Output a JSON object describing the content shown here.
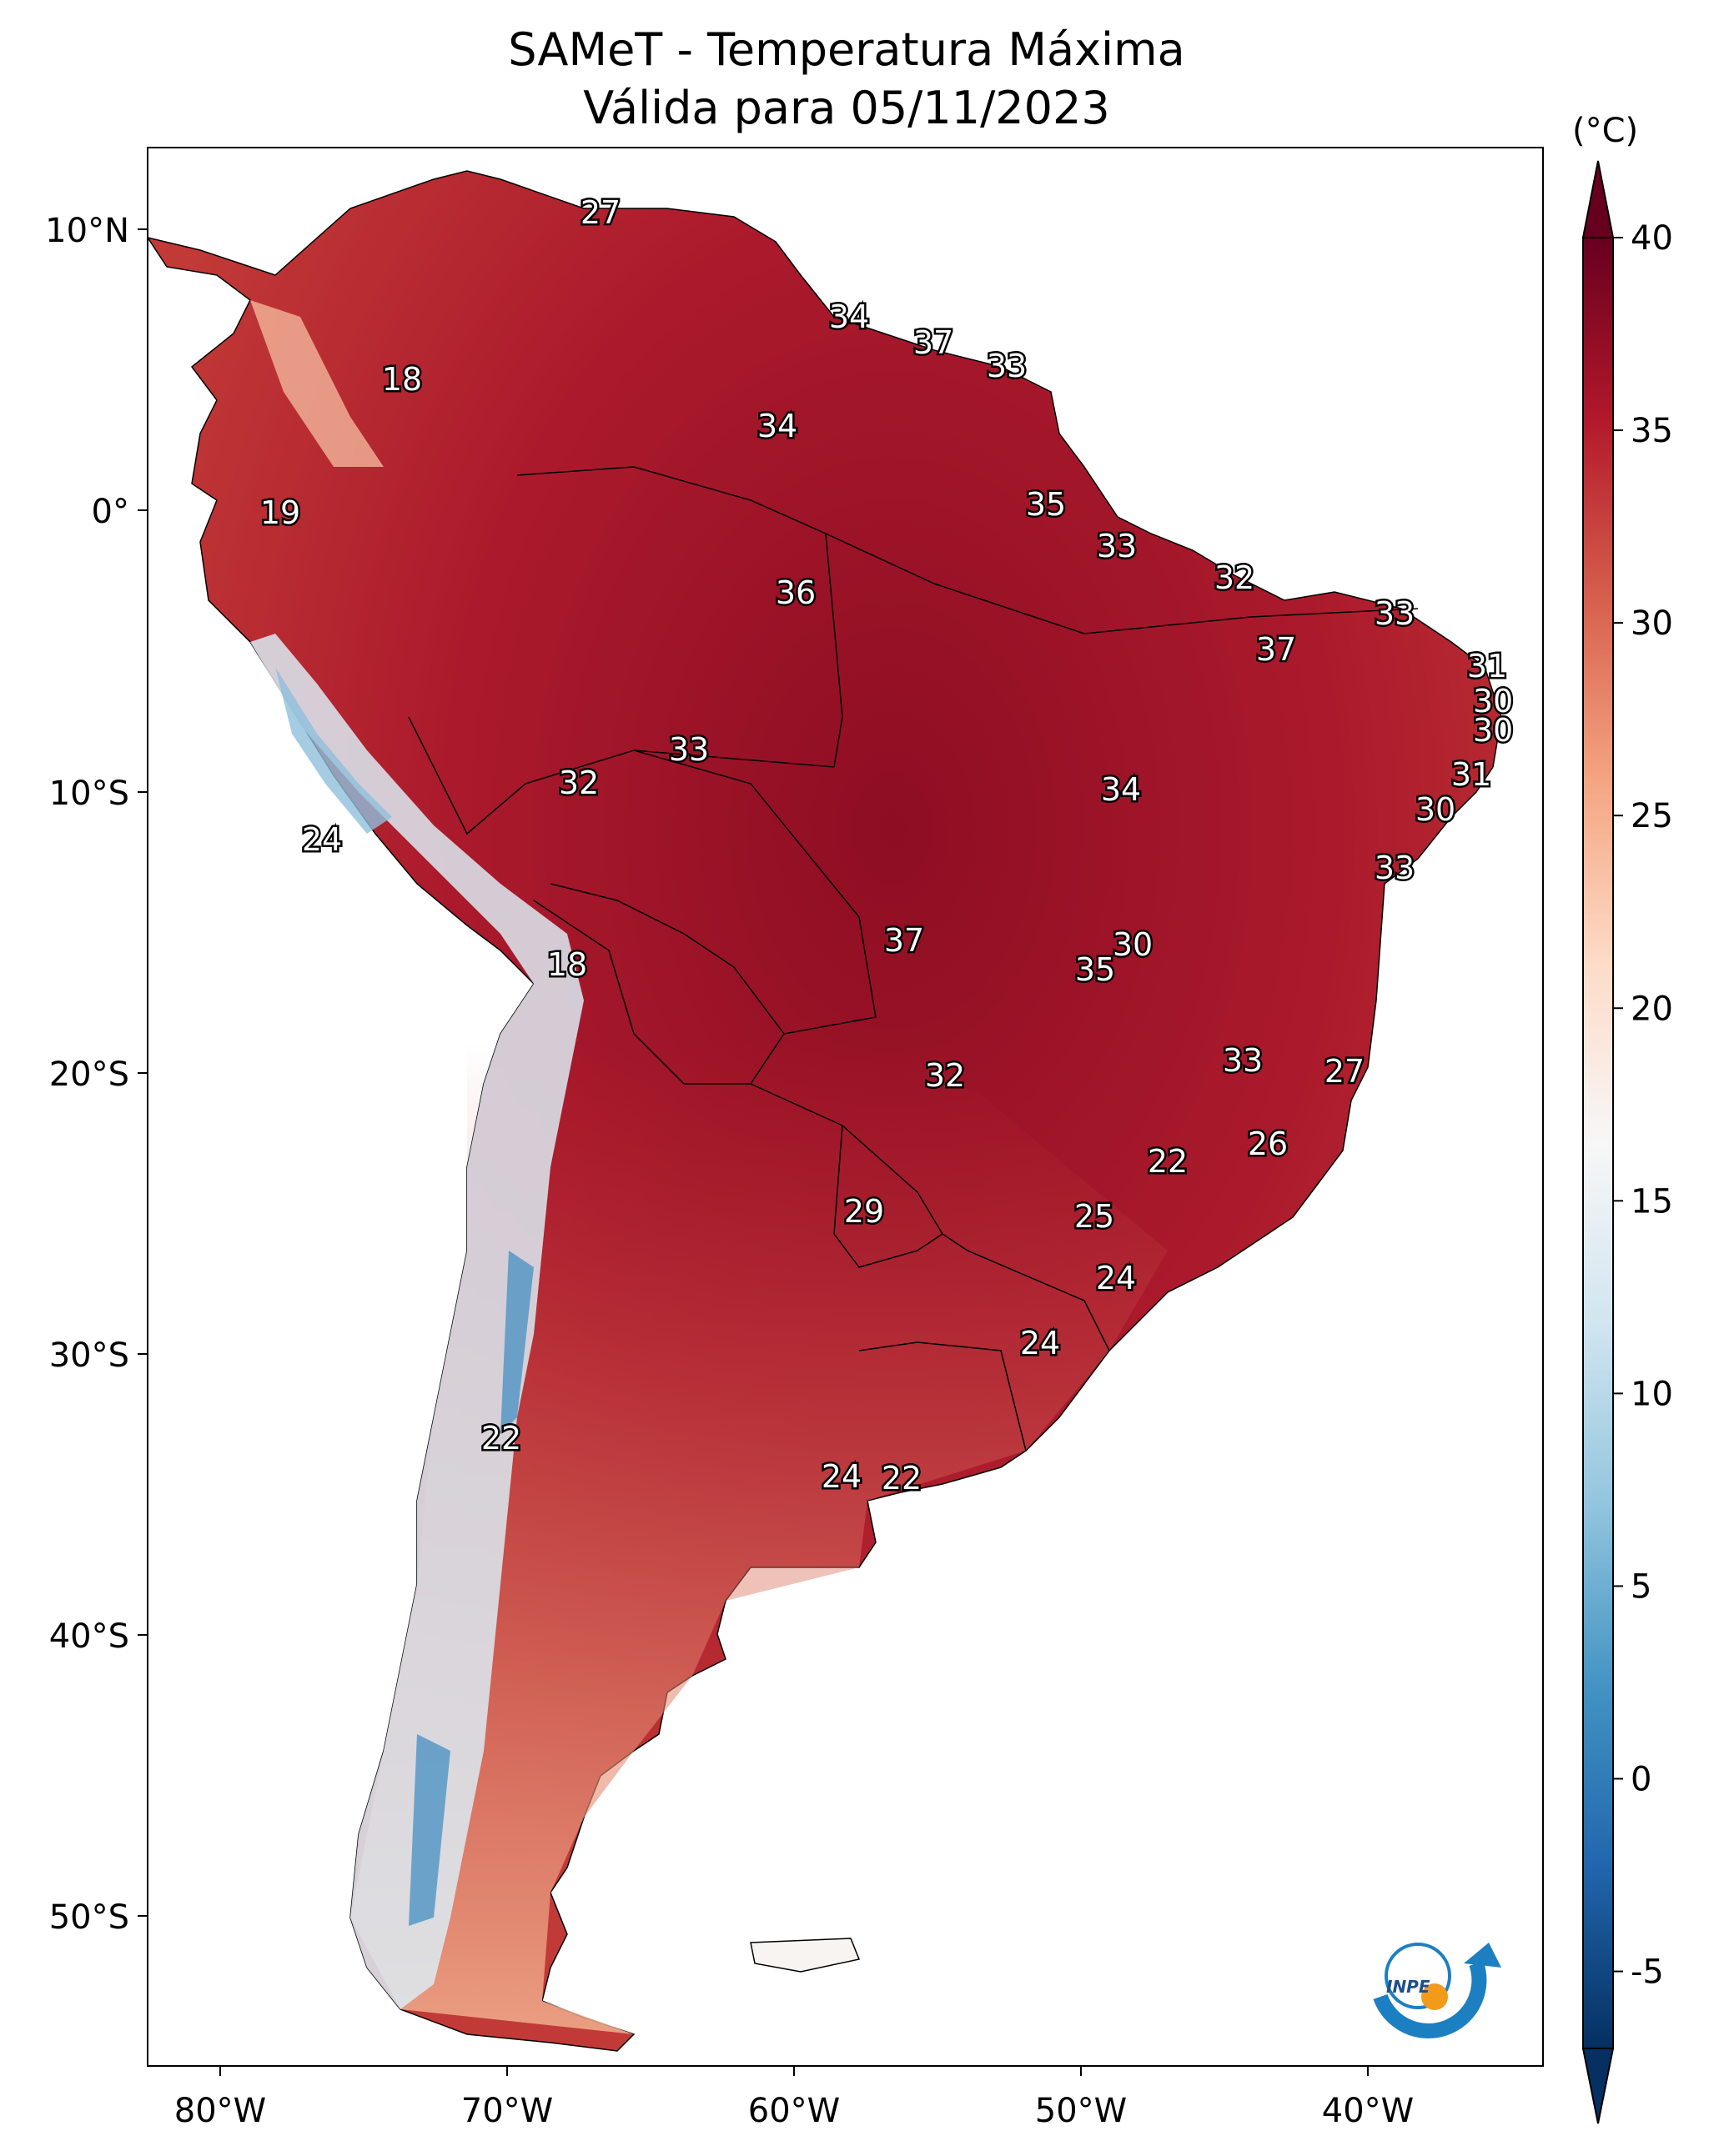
{
  "title": {
    "line1": "SAMeT - Temperatura Máxima",
    "line2": "Válida para 05/11/2023"
  },
  "colorbar": {
    "unit": "(°C)",
    "ticks": [
      "40",
      "35",
      "30",
      "25",
      "20",
      "15",
      "10",
      "5",
      "0",
      "-5"
    ],
    "min": -7,
    "max": 40,
    "colors": [
      "#67001f",
      "#b2182b",
      "#d6604d",
      "#f4a582",
      "#fddbc7",
      "#f7f7f7",
      "#d1e5f0",
      "#92c5de",
      "#4393c3",
      "#2166ac",
      "#053061"
    ]
  },
  "axes": {
    "lon_labels": [
      "80°W",
      "70°W",
      "60°W",
      "50°W",
      "40°W"
    ],
    "lat_labels": [
      "10°N",
      "0°",
      "10°S",
      "20°S",
      "30°S",
      "40°S",
      "50°S"
    ]
  },
  "values": [
    "27",
    "18",
    "19",
    "24",
    "18",
    "22",
    "34",
    "37",
    "33",
    "34",
    "35",
    "33",
    "32",
    "36",
    "33",
    "37",
    "31",
    "30",
    "30",
    "33",
    "32",
    "34",
    "31",
    "30",
    "33",
    "37",
    "30",
    "35",
    "33",
    "27",
    "32",
    "26",
    "22",
    "29",
    "25",
    "24",
    "24",
    "24",
    "22"
  ],
  "logo": {
    "text": "INPE"
  }
}
